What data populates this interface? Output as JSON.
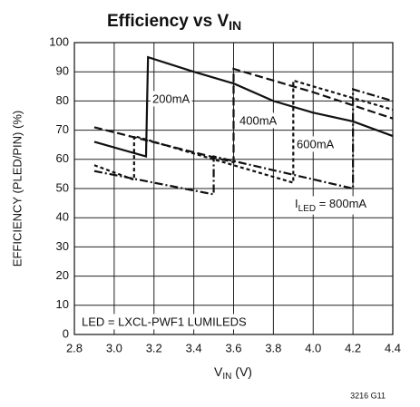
{
  "chart_data": {
    "type": "line",
    "title": "Efficiency vs V",
    "title_subscript": "IN",
    "x_label": "V",
    "x_label_subscript": "IN",
    "x_label_unit": " (V)",
    "y_label": "EFFICIENCY (PLED/PIN) (%)",
    "xlim": [
      2.8,
      4.4
    ],
    "xticks": [
      2.8,
      {
        "value": 3,
        "label": "3.0"
      },
      3.2,
      3.4,
      3.6,
      3.8,
      {
        "value": 4,
        "label": "4.0"
      },
      4.2,
      4.4
    ],
    "ylim": [
      0,
      100
    ],
    "yticks": [
      0,
      10,
      20,
      30,
      40,
      50,
      60,
      70,
      80,
      90,
      100
    ],
    "grid": true,
    "series": [
      {
        "color": "#111111",
        "dash": "solid",
        "x": [
          2.9,
          3.16,
          3.17,
          3.4,
          3.6,
          3.8,
          4.0,
          4.2,
          4.4
        ],
        "values": [
          66,
          61,
          95,
          90,
          86,
          80,
          76,
          73,
          68
        ]
      },
      {
        "color": "#111111",
        "dash": "long",
        "x": [
          2.9,
          3.6,
          3.6,
          4.0,
          4.4
        ],
        "values": [
          71,
          59,
          91,
          83,
          74
        ]
      },
      {
        "color": "#111111",
        "dash": "short",
        "x": [
          2.9,
          3.1,
          3.1,
          3.9,
          3.9,
          4.4
        ],
        "values": [
          58,
          53,
          68,
          52,
          87,
          77
        ]
      },
      {
        "color": "#111111",
        "dash": "dashdot",
        "x": [
          2.9,
          3.5,
          3.5,
          4.2,
          4.2,
          4.4
        ],
        "values": [
          56,
          48,
          61,
          50,
          84,
          80
        ]
      }
    ],
    "annotations": [
      "200mA",
      "400mA",
      "600mA",
      "LED = LXCL-PWF1 LUMILEDS"
    ],
    "led_label": {
      "prefix": "I",
      "subscript": "LED",
      "suffix": " = 800mA"
    },
    "footnote": "3216 G11"
  }
}
